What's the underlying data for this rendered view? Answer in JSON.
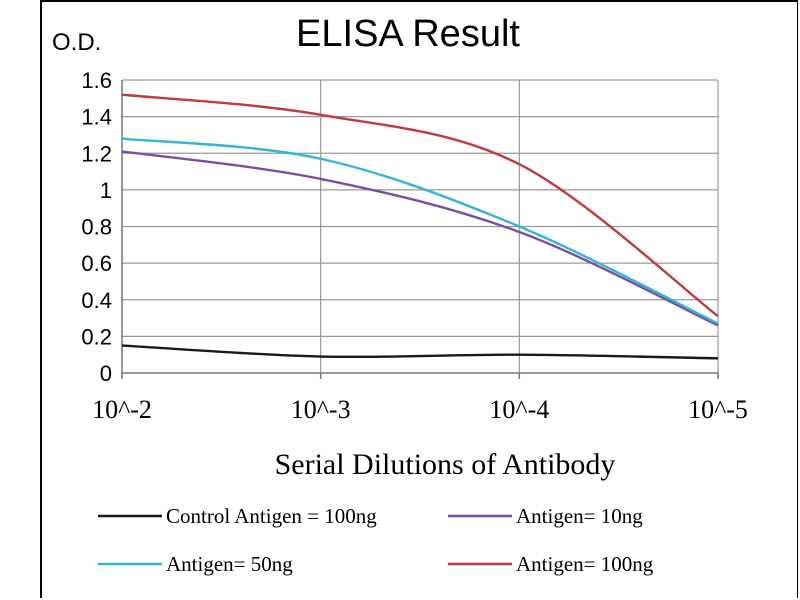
{
  "chart_data": {
    "type": "line",
    "title": "ELISA Result",
    "ylabel": "O.D.",
    "xlabel": "Serial Dilutions of Antibody",
    "categories": [
      "10^-2",
      "10^-3",
      "10^-4",
      "10^-5"
    ],
    "ylim": [
      0,
      1.6
    ],
    "yticks": [
      "0",
      "0.2",
      "0.4",
      "0.6",
      "0.8",
      "1",
      "1.2",
      "1.4",
      "1.6"
    ],
    "grid": true,
    "legend_position": "bottom",
    "series": [
      {
        "name": "Control Antigen = 100ng",
        "color": "#1a1a1a",
        "values": [
          0.15,
          0.09,
          0.1,
          0.08
        ]
      },
      {
        "name": "Antigen= 10ng",
        "color": "#7b4fa0",
        "values": [
          1.21,
          1.06,
          0.77,
          0.26
        ]
      },
      {
        "name": "Antigen= 50ng",
        "color": "#33b5d6",
        "values": [
          1.28,
          1.17,
          0.8,
          0.27
        ]
      },
      {
        "name": "Antigen= 100ng",
        "color": "#c0393b",
        "values": [
          1.52,
          1.41,
          1.14,
          0.31
        ]
      }
    ]
  }
}
